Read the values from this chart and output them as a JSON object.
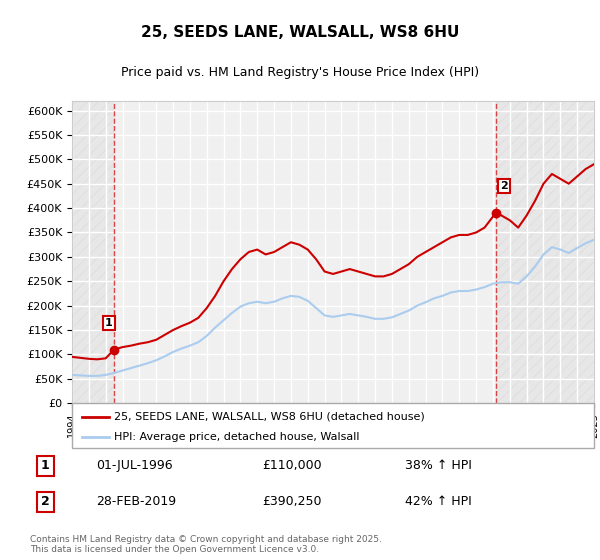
{
  "title": "25, SEEDS LANE, WALSALL, WS8 6HU",
  "subtitle": "Price paid vs. HM Land Registry's House Price Index (HPI)",
  "ylabel": "",
  "xlabel": "",
  "ylim": [
    0,
    620000
  ],
  "yticks": [
    0,
    50000,
    100000,
    150000,
    200000,
    250000,
    300000,
    350000,
    400000,
    450000,
    500000,
    550000,
    600000
  ],
  "ytick_labels": [
    "£0",
    "£50K",
    "£100K",
    "£150K",
    "£200K",
    "£250K",
    "£300K",
    "£350K",
    "£400K",
    "£450K",
    "£500K",
    "£550K",
    "£600K"
  ],
  "background_color": "#ffffff",
  "plot_bg_color": "#f0f0f0",
  "grid_color": "#ffffff",
  "red_color": "#cc0000",
  "blue_color": "#aaccee",
  "sale1_year": 1996.5,
  "sale1_price": 110000,
  "sale2_year": 2019.17,
  "sale2_price": 390250,
  "legend_line1": "25, SEEDS LANE, WALSALL, WS8 6HU (detached house)",
  "legend_line2": "HPI: Average price, detached house, Walsall",
  "annotation1_label": "1",
  "annotation1_date": "01-JUL-1996",
  "annotation1_price": "£110,000",
  "annotation1_hpi": "38% ↑ HPI",
  "annotation2_label": "2",
  "annotation2_date": "28-FEB-2019",
  "annotation2_price": "£390,250",
  "annotation2_hpi": "42% ↑ HPI",
  "footnote": "Contains HM Land Registry data © Crown copyright and database right 2025.\nThis data is licensed under the Open Government Licence v3.0.",
  "xmin": 1994,
  "xmax": 2025,
  "red_hpi_x": [
    1994.0,
    1994.5,
    1995.0,
    1995.5,
    1996.0,
    1996.5,
    1997.0,
    1997.5,
    1998.0,
    1998.5,
    1999.0,
    1999.5,
    2000.0,
    2000.5,
    2001.0,
    2001.5,
    2002.0,
    2002.5,
    2003.0,
    2003.5,
    2004.0,
    2004.5,
    2005.0,
    2005.5,
    2006.0,
    2006.5,
    2007.0,
    2007.5,
    2008.0,
    2008.5,
    2009.0,
    2009.5,
    2010.0,
    2010.5,
    2011.0,
    2011.5,
    2012.0,
    2012.5,
    2013.0,
    2013.5,
    2014.0,
    2014.5,
    2015.0,
    2015.5,
    2016.0,
    2016.5,
    2017.0,
    2017.5,
    2018.0,
    2018.5,
    2019.17,
    2019.5,
    2020.0,
    2020.5,
    2021.0,
    2021.5,
    2022.0,
    2022.5,
    2023.0,
    2023.5,
    2024.0,
    2024.5,
    2025.0
  ],
  "red_hpi_y": [
    95000,
    93000,
    91000,
    90000,
    92000,
    110000,
    115000,
    118000,
    122000,
    125000,
    130000,
    140000,
    150000,
    158000,
    165000,
    175000,
    195000,
    220000,
    250000,
    275000,
    295000,
    310000,
    315000,
    305000,
    310000,
    320000,
    330000,
    325000,
    315000,
    295000,
    270000,
    265000,
    270000,
    275000,
    270000,
    265000,
    260000,
    260000,
    265000,
    275000,
    285000,
    300000,
    310000,
    320000,
    330000,
    340000,
    345000,
    345000,
    350000,
    360000,
    390250,
    385000,
    375000,
    360000,
    385000,
    415000,
    450000,
    470000,
    460000,
    450000,
    465000,
    480000,
    490000
  ],
  "blue_hpi_x": [
    1994.0,
    1994.5,
    1995.0,
    1995.5,
    1996.0,
    1996.5,
    1997.0,
    1997.5,
    1998.0,
    1998.5,
    1999.0,
    1999.5,
    2000.0,
    2000.5,
    2001.0,
    2001.5,
    2002.0,
    2002.5,
    2003.0,
    2003.5,
    2004.0,
    2004.5,
    2005.0,
    2005.5,
    2006.0,
    2006.5,
    2007.0,
    2007.5,
    2008.0,
    2008.5,
    2009.0,
    2009.5,
    2010.0,
    2010.5,
    2011.0,
    2011.5,
    2012.0,
    2012.5,
    2013.0,
    2013.5,
    2014.0,
    2014.5,
    2015.0,
    2015.5,
    2016.0,
    2016.5,
    2017.0,
    2017.5,
    2018.0,
    2018.5,
    2019.0,
    2019.5,
    2020.0,
    2020.5,
    2021.0,
    2021.5,
    2022.0,
    2022.5,
    2023.0,
    2023.5,
    2024.0,
    2024.5,
    2025.0
  ],
  "blue_hpi_y": [
    58000,
    57000,
    56000,
    56000,
    58000,
    62000,
    67000,
    72000,
    77000,
    82000,
    88000,
    96000,
    105000,
    112000,
    118000,
    125000,
    138000,
    155000,
    170000,
    185000,
    198000,
    205000,
    208000,
    205000,
    208000,
    215000,
    220000,
    218000,
    210000,
    195000,
    180000,
    177000,
    180000,
    183000,
    180000,
    177000,
    173000,
    173000,
    176000,
    183000,
    190000,
    200000,
    207000,
    215000,
    220000,
    227000,
    230000,
    230000,
    233000,
    238000,
    245000,
    248000,
    248000,
    245000,
    260000,
    280000,
    305000,
    320000,
    315000,
    308000,
    318000,
    328000,
    335000
  ]
}
